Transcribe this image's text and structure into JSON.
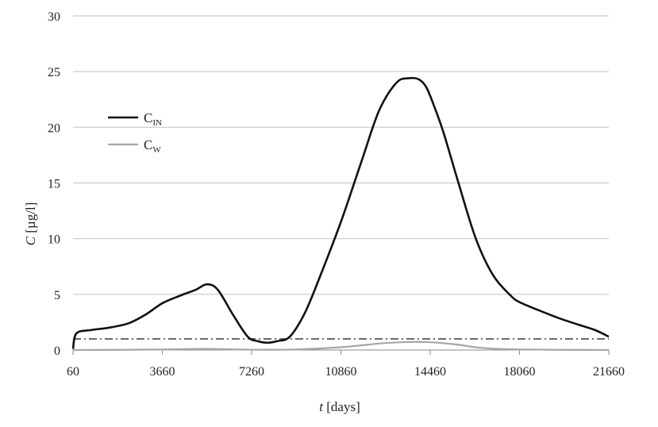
{
  "chart_data": {
    "type": "line",
    "title": "",
    "xlabel": {
      "var": "t",
      "unit": "[days]"
    },
    "ylabel": {
      "var": "C",
      "unit": "[µg/l]"
    },
    "xlim": [
      60,
      21660
    ],
    "ylim": [
      0,
      30
    ],
    "xticks": [
      60,
      3660,
      7260,
      10860,
      14460,
      18060,
      21660
    ],
    "yticks": [
      0,
      5,
      10,
      15,
      20,
      25,
      30
    ],
    "grid": "horizontal",
    "legend_position": "upper-left",
    "series": [
      {
        "name": "C_IN",
        "label_main": "C",
        "label_sub": "IN",
        "color": "#111111",
        "style": "solid",
        "x": [
          60,
          200,
          800,
          1500,
          2300,
          3000,
          3660,
          4400,
          5000,
          5460,
          5900,
          6500,
          7100,
          7500,
          7900,
          8300,
          8800,
          9400,
          10000,
          10860,
          11700,
          12400,
          13100,
          13600,
          14000,
          14300,
          14600,
          15000,
          15600,
          16300,
          17000,
          17700,
          18060,
          18800,
          19600,
          20400,
          21100,
          21660
        ],
        "y": [
          0.1,
          1.5,
          1.8,
          2.0,
          2.4,
          3.2,
          4.2,
          4.9,
          5.4,
          5.9,
          5.4,
          3.2,
          1.2,
          0.8,
          0.65,
          0.8,
          1.2,
          3.3,
          6.5,
          11.5,
          17.0,
          21.5,
          24.0,
          24.4,
          24.3,
          23.6,
          22.0,
          19.5,
          15.0,
          10.0,
          6.7,
          4.9,
          4.3,
          3.6,
          2.9,
          2.3,
          1.8,
          1.2
        ]
      },
      {
        "name": "C_W",
        "label_main": "C",
        "label_sub": "W",
        "color": "#a6a6a6",
        "style": "solid",
        "x": [
          60,
          2000,
          3660,
          5460,
          7260,
          9000,
          10860,
          12500,
          13600,
          14460,
          15500,
          16500,
          18060,
          21660
        ],
        "y": [
          0.0,
          0.02,
          0.05,
          0.1,
          0.03,
          0.05,
          0.25,
          0.6,
          0.72,
          0.7,
          0.5,
          0.2,
          0.05,
          0.0
        ]
      }
    ],
    "reference_lines": [
      {
        "y": 1.0,
        "style": "dash-dot",
        "color": "#555555"
      }
    ]
  }
}
